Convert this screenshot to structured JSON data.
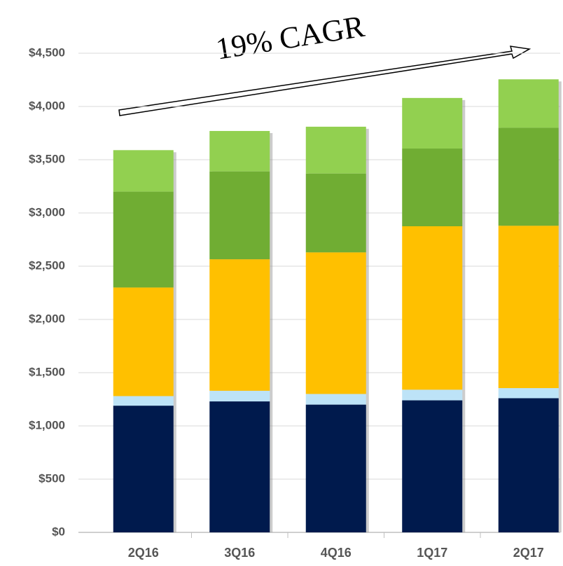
{
  "chart_data": {
    "type": "stacked_bar",
    "annotation": "19% CAGR",
    "categories": [
      "2Q16",
      "3Q16",
      "4Q16",
      "1Q17",
      "2Q17"
    ],
    "series": [
      {
        "color": "#001a4d",
        "values": [
          1190,
          1230,
          1200,
          1240,
          1260
        ]
      },
      {
        "color": "#bde3f7",
        "values": [
          90,
          100,
          100,
          100,
          95
        ]
      },
      {
        "color": "#ffc000",
        "values": [
          1020,
          1235,
          1330,
          1535,
          1525
        ]
      },
      {
        "color": "#70ad33",
        "values": [
          900,
          825,
          740,
          730,
          920
        ]
      },
      {
        "color": "#92d050",
        "values": [
          390,
          380,
          440,
          475,
          455
        ]
      }
    ],
    "ylim": [
      0,
      4500
    ],
    "yticks": [
      {
        "value": 0,
        "label": "$0"
      },
      {
        "value": 500,
        "label": "$500"
      },
      {
        "value": 1000,
        "label": "$1,000"
      },
      {
        "value": 1500,
        "label": "$1,500"
      },
      {
        "value": 2000,
        "label": "$2,000"
      },
      {
        "value": 2500,
        "label": "$2,500"
      },
      {
        "value": 3000,
        "label": "$3,000"
      },
      {
        "value": 3500,
        "label": "$3,500"
      },
      {
        "value": 4000,
        "label": "$4,000"
      },
      {
        "value": 4500,
        "label": "$4,500"
      }
    ],
    "grid": true
  }
}
